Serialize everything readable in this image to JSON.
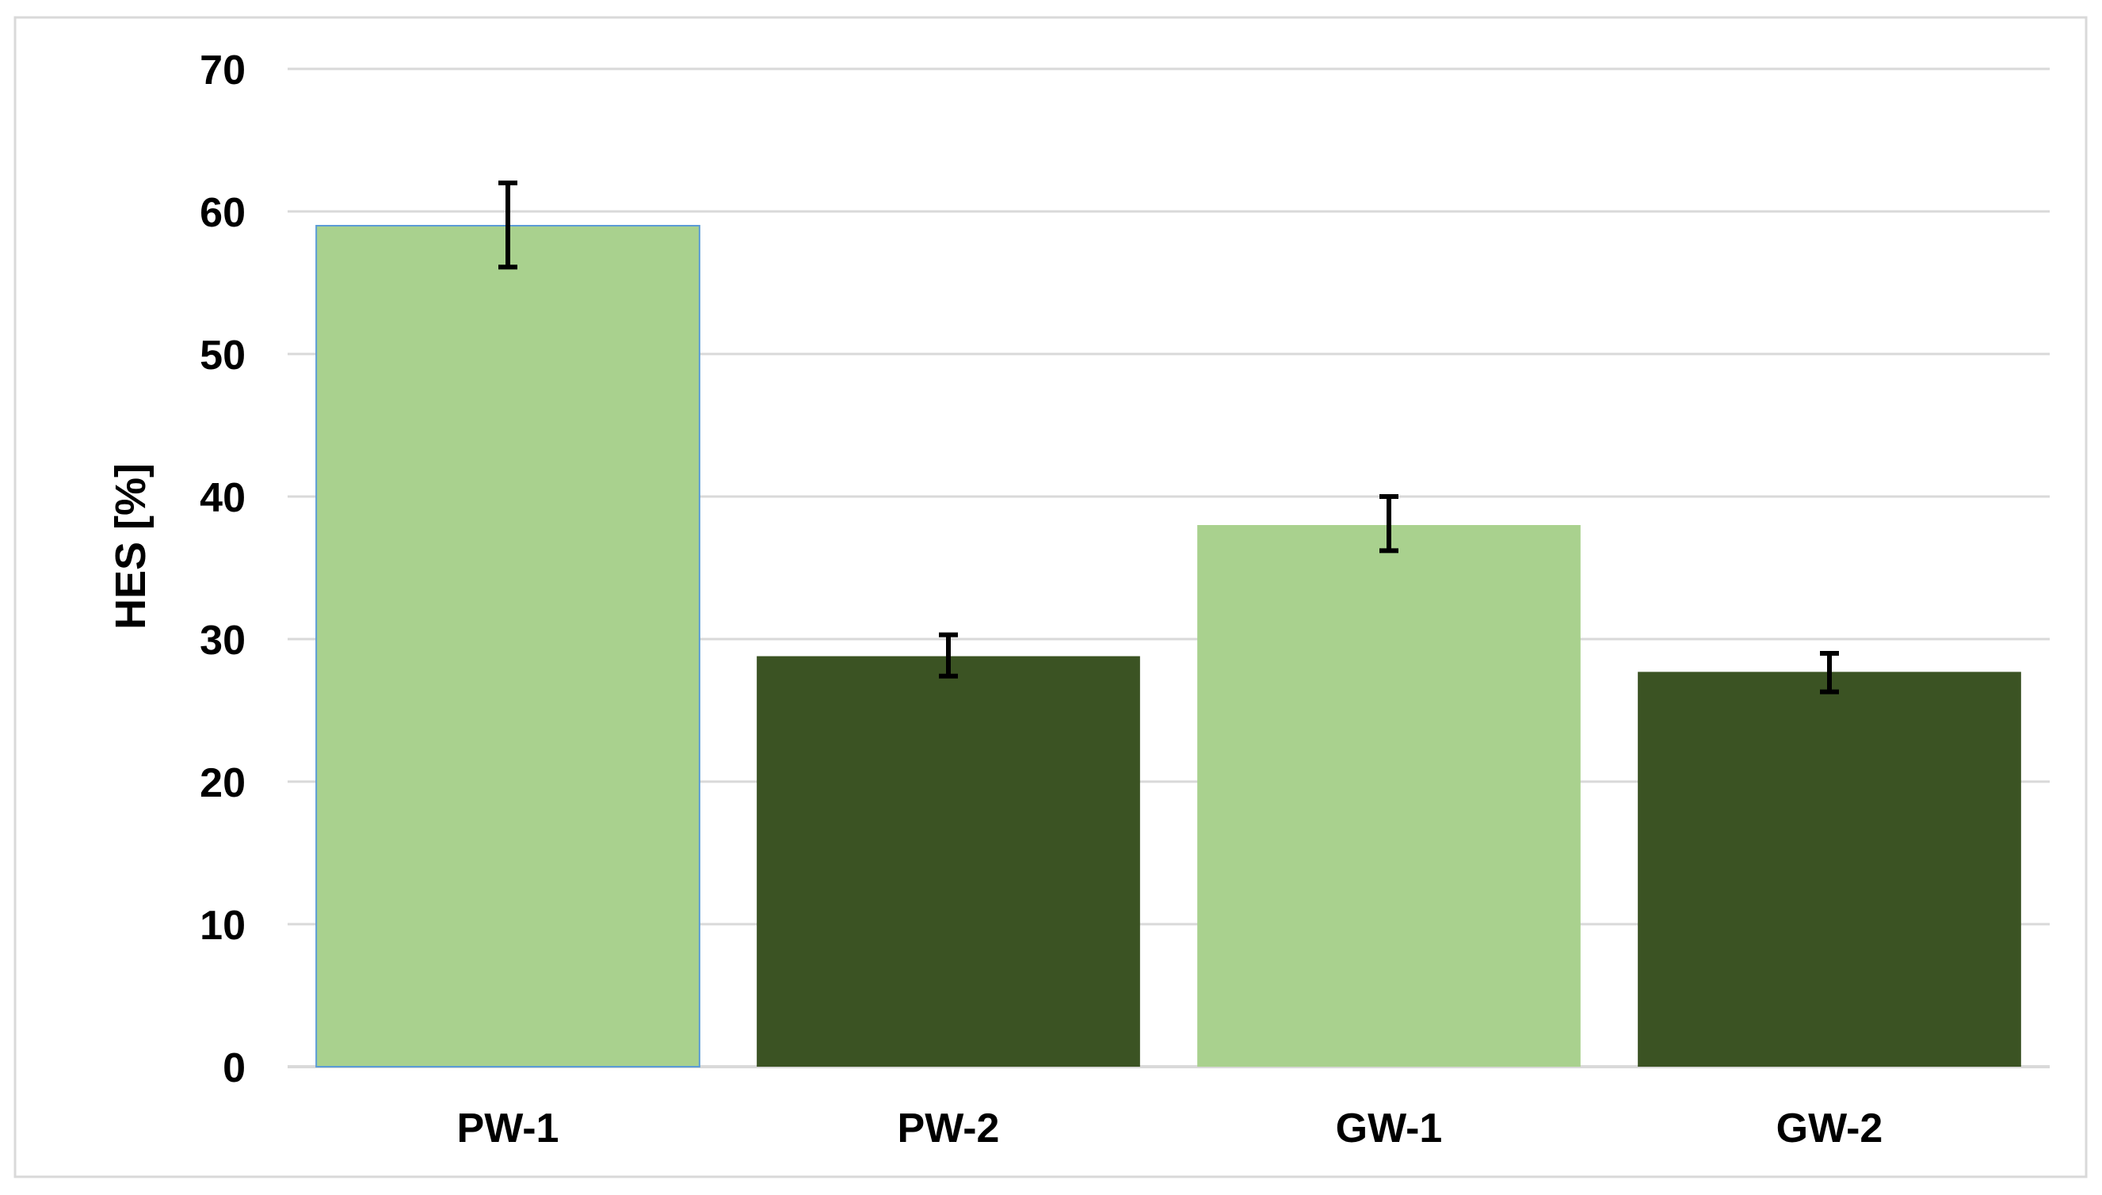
{
  "chart_data": {
    "type": "bar",
    "title": "",
    "xlabel": "",
    "ylabel": "HES [%]",
    "ylim": [
      0,
      70
    ],
    "yticks": [
      0,
      10,
      20,
      30,
      40,
      50,
      60,
      70
    ],
    "grid": true,
    "legend": "none",
    "categories": [
      "PW-1",
      "PW-2",
      "GW-1",
      "GW-2"
    ],
    "values": [
      59,
      28.8,
      38,
      27.7
    ],
    "error_low": [
      56.1,
      27.4,
      36.2,
      26.3
    ],
    "error_high": [
      62,
      30.3,
      40,
      29
    ],
    "bar_colors": [
      "#a9d18e",
      "#3b5323",
      "#a9d18e",
      "#3b5323"
    ]
  }
}
